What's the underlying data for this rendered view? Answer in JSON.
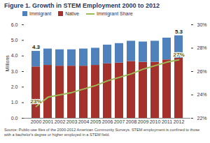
{
  "chart_data": {
    "type": "bar",
    "title": "Figure 1. Growth in STEM Employment 2000 to 2012",
    "caption": "Source: Public-use files of the 2000-2012 American Community Surveys. STEM employment is confined to those with a bachelor's degree or higher employed in a STEM field.",
    "y_label": "Millions",
    "categories": [
      "2000",
      "2001",
      "2002",
      "2003",
      "2004",
      "2005",
      "2006",
      "2007",
      "2008",
      "2009",
      "2010",
      "2011",
      "2012"
    ],
    "stacked": true,
    "series": [
      {
        "name": "Immigrant",
        "type": "bar",
        "color": "#4f81bd",
        "values": [
          1.0,
          1.05,
          1.05,
          1.05,
          1.1,
          1.1,
          1.2,
          1.25,
          1.3,
          1.3,
          1.35,
          1.4,
          1.45
        ]
      },
      {
        "name": "Native",
        "type": "bar",
        "color": "#a5312d",
        "values": [
          3.3,
          3.4,
          3.35,
          3.35,
          3.35,
          3.4,
          3.5,
          3.55,
          3.65,
          3.6,
          3.6,
          3.75,
          3.85
        ]
      },
      {
        "name": "Immigrant Share",
        "type": "line",
        "color": "#9bbb59",
        "axis": "y2",
        "values": [
          23,
          23.8,
          24,
          24.2,
          24.5,
          24.8,
          25.2,
          25.5,
          25.8,
          26.2,
          26.5,
          26.8,
          27
        ]
      }
    ],
    "ylim": [
      0,
      6
    ],
    "yticks": [
      {
        "value": 0,
        "label": "0.0"
      },
      {
        "value": 1,
        "label": "1.0"
      },
      {
        "value": 2,
        "label": "2.0"
      },
      {
        "value": 3,
        "label": "3.0"
      },
      {
        "value": 4,
        "label": "4.0"
      },
      {
        "value": 5,
        "label": "5.0"
      },
      {
        "value": 6,
        "label": "6.0"
      }
    ],
    "y2lim": [
      22,
      30
    ],
    "y2ticks": [
      {
        "value": 22,
        "label": "22%"
      },
      {
        "value": 24,
        "label": "24%"
      },
      {
        "value": 26,
        "label": "26%"
      },
      {
        "value": 28,
        "label": "28%"
      },
      {
        "value": 30,
        "label": "30%"
      }
    ],
    "grid": false,
    "legend": "top-left",
    "annotations": [
      {
        "x": "2000",
        "value": 4.3,
        "label": "4.3",
        "axis": "y"
      },
      {
        "x": "2012",
        "value": 5.3,
        "label": "5.3",
        "axis": "y"
      },
      {
        "x": "2000",
        "value": 23,
        "label": "23%",
        "axis": "y2"
      },
      {
        "x": "2012",
        "value": 27,
        "label": "27%",
        "axis": "y2"
      }
    ]
  }
}
